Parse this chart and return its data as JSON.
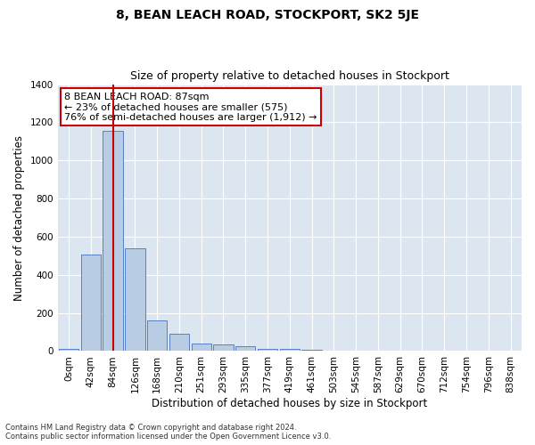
{
  "title": "8, BEAN LEACH ROAD, STOCKPORT, SK2 5JE",
  "subtitle": "Size of property relative to detached houses in Stockport",
  "xlabel": "Distribution of detached houses by size in Stockport",
  "ylabel": "Number of detached properties",
  "footnote1": "Contains HM Land Registry data © Crown copyright and database right 2024.",
  "footnote2": "Contains public sector information licensed under the Open Government Licence v3.0.",
  "bar_labels": [
    "0sqm",
    "42sqm",
    "84sqm",
    "126sqm",
    "168sqm",
    "210sqm",
    "251sqm",
    "293sqm",
    "335sqm",
    "377sqm",
    "419sqm",
    "461sqm",
    "503sqm",
    "545sqm",
    "587sqm",
    "629sqm",
    "670sqm",
    "712sqm",
    "754sqm",
    "796sqm",
    "838sqm"
  ],
  "bar_values": [
    10,
    505,
    1155,
    540,
    160,
    93,
    40,
    35,
    25,
    13,
    12,
    5,
    0,
    0,
    0,
    0,
    0,
    0,
    0,
    0,
    0
  ],
  "bar_color": "#b8cce4",
  "bar_edge_color": "#4472c4",
  "background_color": "#dce6f1",
  "grid_color": "#ffffff",
  "vline_x": 2,
  "vline_color": "#cc0000",
  "annotation_line1": "8 BEAN LEACH ROAD: 87sqm",
  "annotation_line2": "← 23% of detached houses are smaller (575)",
  "annotation_line3": "76% of semi-detached houses are larger (1,912) →",
  "annotation_box_color": "#cc0000",
  "ylim": [
    0,
    1400
  ],
  "yticks": [
    0,
    200,
    400,
    600,
    800,
    1000,
    1200,
    1400
  ],
  "title_fontsize": 10,
  "subtitle_fontsize": 9,
  "axis_label_fontsize": 8.5,
  "tick_fontsize": 7.5,
  "annotation_fontsize": 8,
  "footnote_fontsize": 6
}
